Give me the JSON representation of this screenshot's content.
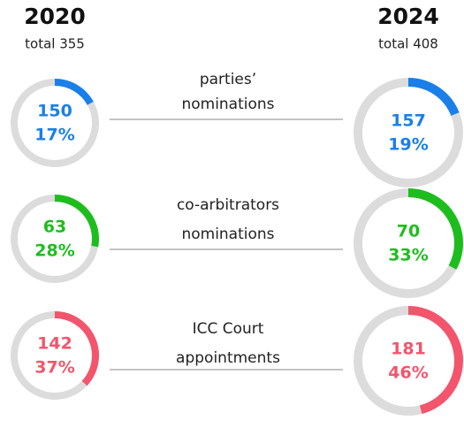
{
  "columns": [
    {
      "year": "2020",
      "total": "total 355"
    },
    {
      "year": "2024",
      "total": "total 408"
    }
  ],
  "rows": [
    {
      "label": [
        "parties’",
        "nominations"
      ],
      "color": "#1a7fe8",
      "charts": [
        {
          "type": "donut",
          "count": 150,
          "value": 17,
          "value_label": "17%"
        },
        {
          "type": "donut",
          "count": 157,
          "value": 19,
          "value_label": "19%"
        }
      ]
    },
    {
      "label": [
        "co-arbitrators",
        "nominations"
      ],
      "color": "#1ebd1e",
      "charts": [
        {
          "type": "donut",
          "count": 63,
          "value": 28,
          "value_label": "28%"
        },
        {
          "type": "donut",
          "count": 70,
          "value": 33,
          "value_label": "33%"
        }
      ]
    },
    {
      "label": [
        "ICC Court",
        "appointments"
      ],
      "color": "#f2556c",
      "charts": [
        {
          "type": "donut",
          "count": 142,
          "value": 37,
          "value_label": "37%"
        },
        {
          "type": "donut",
          "count": 181,
          "value": 46,
          "value_label": "46%"
        }
      ]
    }
  ]
}
